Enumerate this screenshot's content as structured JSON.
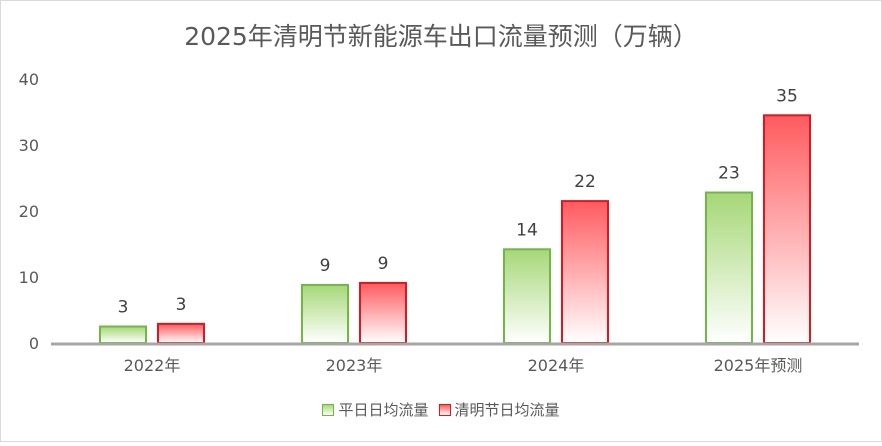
{
  "chart_data": {
    "type": "bar",
    "title": "2025年清明节新能源车出口流量预测（万辆）",
    "categories": [
      "2022年",
      "2023年",
      "2024年",
      "2025年预测"
    ],
    "series": [
      {
        "name": "平日日均流量",
        "values": [
          2.5,
          8.8,
          14.2,
          22.8
        ],
        "labels": [
          "3",
          "9",
          "14",
          "23"
        ],
        "stroke": "#70b844",
        "fill_top": "#a6d777",
        "fill_bottom": "#ffffff"
      },
      {
        "name": "清明节日均流量",
        "values": [
          2.9,
          9.1,
          21.5,
          34.5
        ],
        "labels": [
          "3",
          "9",
          "22",
          "35"
        ],
        "stroke": "#e0161e",
        "fill_top": "#ff5b5f",
        "fill_bottom": "#ffffff"
      }
    ],
    "ylim": [
      0,
      40
    ],
    "yticks": [
      0,
      10,
      20,
      30,
      40
    ],
    "grid": false,
    "legend_position": "bottom"
  }
}
